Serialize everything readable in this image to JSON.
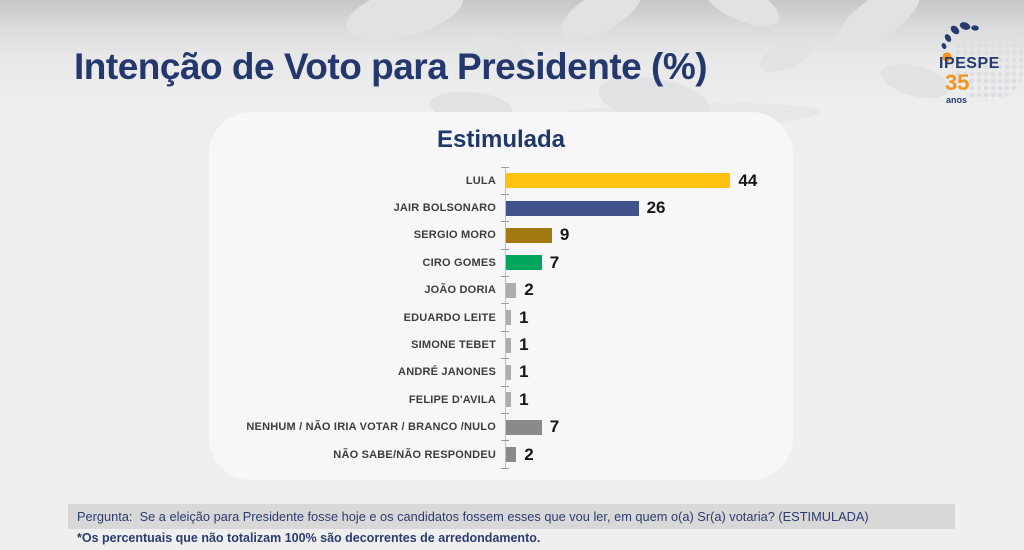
{
  "page": {
    "title": "Intenção de Voto para Presidente (%)"
  },
  "logo": {
    "name": "IPESPE",
    "years": "35",
    "years_label": "anos"
  },
  "chart_data": {
    "type": "bar",
    "orientation": "horizontal",
    "title": "Estimulada",
    "categories": [
      "LULA",
      "JAIR BOLSONARO",
      "SERGIO MORO",
      "CIRO GOMES",
      "JOÃO DORIA",
      "EDUARDO LEITE",
      "SIMONE TEBET",
      "ANDRÉ JANONES",
      "FELIPE D'AVILA",
      "NENHUM / NÃO IRIA VOTAR / BRANCO /NULO",
      "NÃO SABE/NÃO RESPONDEU"
    ],
    "values": [
      44,
      26,
      9,
      7,
      2,
      1,
      1,
      1,
      1,
      7,
      2
    ],
    "colors": [
      "#FFC20E",
      "#41538A",
      "#A0790F",
      "#00A65C",
      "#ADADAD",
      "#ADADAD",
      "#ADADAD",
      "#ADADAD",
      "#ADADAD",
      "#8A8A8A",
      "#8A8A8A"
    ],
    "xlim": [
      0,
      48
    ],
    "value_labels_shown": true,
    "grid": false,
    "legend": false
  },
  "footer": {
    "question": "Pergunta:  Se a eleição para Presidente fosse hoje e os candidatos fossem esses que vou ler, em quem o(a) Sr(a) votaria? (ESTIMULADA)",
    "note": "*Os percentuais que não totalizam 100% são decorrentes de arredondamento."
  }
}
